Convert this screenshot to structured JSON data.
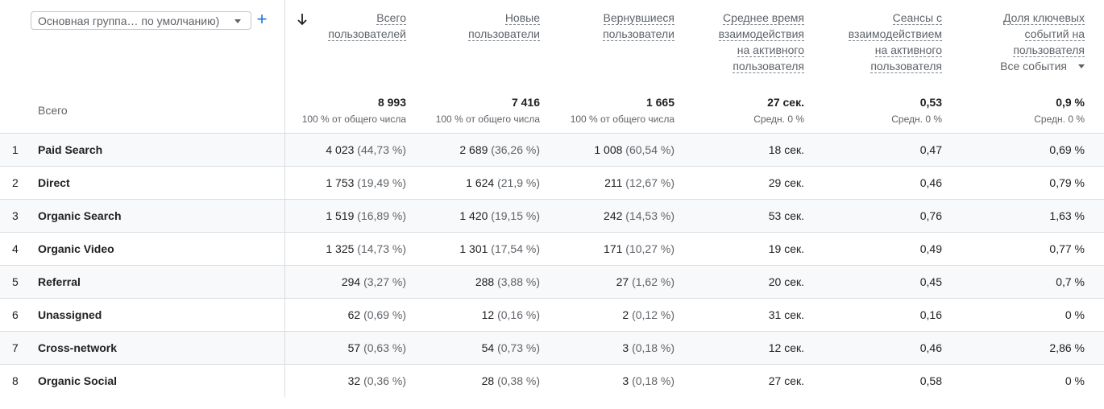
{
  "dimension_select": {
    "value": "Основная группа… по умолчанию)"
  },
  "add_button": {
    "label": "+"
  },
  "events_select": {
    "value": "Все события"
  },
  "columns": [
    {
      "id": "total_users",
      "lines": [
        "Всего",
        "пользователей"
      ]
    },
    {
      "id": "new_users",
      "lines": [
        "Новые",
        "пользователи"
      ]
    },
    {
      "id": "returning_users",
      "lines": [
        "Вернувшиеся",
        "пользователи"
      ]
    },
    {
      "id": "avg_engagement_time",
      "lines": [
        "Среднее время",
        "взаимодействия",
        "на активного",
        "пользователя"
      ]
    },
    {
      "id": "engaged_sessions",
      "lines": [
        "Сеансы с",
        "взаимодействием",
        "на активного",
        "пользователя"
      ]
    },
    {
      "id": "key_event_rate",
      "lines": [
        "Доля ключевых",
        "событий на",
        "пользователя"
      ]
    }
  ],
  "totals": {
    "label": "Всего",
    "values": [
      "8 993",
      "7 416",
      "1 665",
      "27 сек.",
      "0,53",
      "0,9 %"
    ],
    "subs": [
      "100 % от общего числа",
      "100 % от общего числа",
      "100 % от общего числа",
      "Средн. 0 %",
      "Средн. 0 %",
      "Средн. 0 %"
    ]
  },
  "rows": [
    {
      "num": "1",
      "name": "Paid Search",
      "cells": [
        [
          "4 023",
          "(44,73 %)"
        ],
        [
          "2 689",
          "(36,26 %)"
        ],
        [
          "1 008",
          "(60,54 %)"
        ],
        [
          "18 сек.",
          ""
        ],
        [
          "0,47",
          ""
        ],
        [
          "0,69 %",
          ""
        ]
      ]
    },
    {
      "num": "2",
      "name": "Direct",
      "cells": [
        [
          "1 753",
          "(19,49 %)"
        ],
        [
          "1 624",
          "(21,9 %)"
        ],
        [
          "211",
          "(12,67 %)"
        ],
        [
          "29 сек.",
          ""
        ],
        [
          "0,46",
          ""
        ],
        [
          "0,79 %",
          ""
        ]
      ]
    },
    {
      "num": "3",
      "name": "Organic Search",
      "cells": [
        [
          "1 519",
          "(16,89 %)"
        ],
        [
          "1 420",
          "(19,15 %)"
        ],
        [
          "242",
          "(14,53 %)"
        ],
        [
          "53 сек.",
          ""
        ],
        [
          "0,76",
          ""
        ],
        [
          "1,63 %",
          ""
        ]
      ]
    },
    {
      "num": "4",
      "name": "Organic Video",
      "cells": [
        [
          "1 325",
          "(14,73 %)"
        ],
        [
          "1 301",
          "(17,54 %)"
        ],
        [
          "171",
          "(10,27 %)"
        ],
        [
          "19 сек.",
          ""
        ],
        [
          "0,49",
          ""
        ],
        [
          "0,77 %",
          ""
        ]
      ]
    },
    {
      "num": "5",
      "name": "Referral",
      "cells": [
        [
          "294",
          "(3,27 %)"
        ],
        [
          "288",
          "(3,88 %)"
        ],
        [
          "27",
          "(1,62 %)"
        ],
        [
          "20 сек.",
          ""
        ],
        [
          "0,45",
          ""
        ],
        [
          "0,7 %",
          ""
        ]
      ]
    },
    {
      "num": "6",
      "name": "Unassigned",
      "cells": [
        [
          "62",
          "(0,69 %)"
        ],
        [
          "12",
          "(0,16 %)"
        ],
        [
          "2",
          "(0,12 %)"
        ],
        [
          "31 сек.",
          ""
        ],
        [
          "0,16",
          ""
        ],
        [
          "0 %",
          ""
        ]
      ]
    },
    {
      "num": "7",
      "name": "Cross-network",
      "cells": [
        [
          "57",
          "(0,63 %)"
        ],
        [
          "54",
          "(0,73 %)"
        ],
        [
          "3",
          "(0,18 %)"
        ],
        [
          "12 сек.",
          ""
        ],
        [
          "0,46",
          ""
        ],
        [
          "2,86 %",
          ""
        ]
      ]
    },
    {
      "num": "8",
      "name": "Organic Social",
      "cells": [
        [
          "32",
          "(0,36 %)"
        ],
        [
          "28",
          "(0,38 %)"
        ],
        [
          "3",
          "(0,18 %)"
        ],
        [
          "27 сек.",
          ""
        ],
        [
          "0,58",
          ""
        ],
        [
          "0 %",
          ""
        ]
      ]
    }
  ]
}
